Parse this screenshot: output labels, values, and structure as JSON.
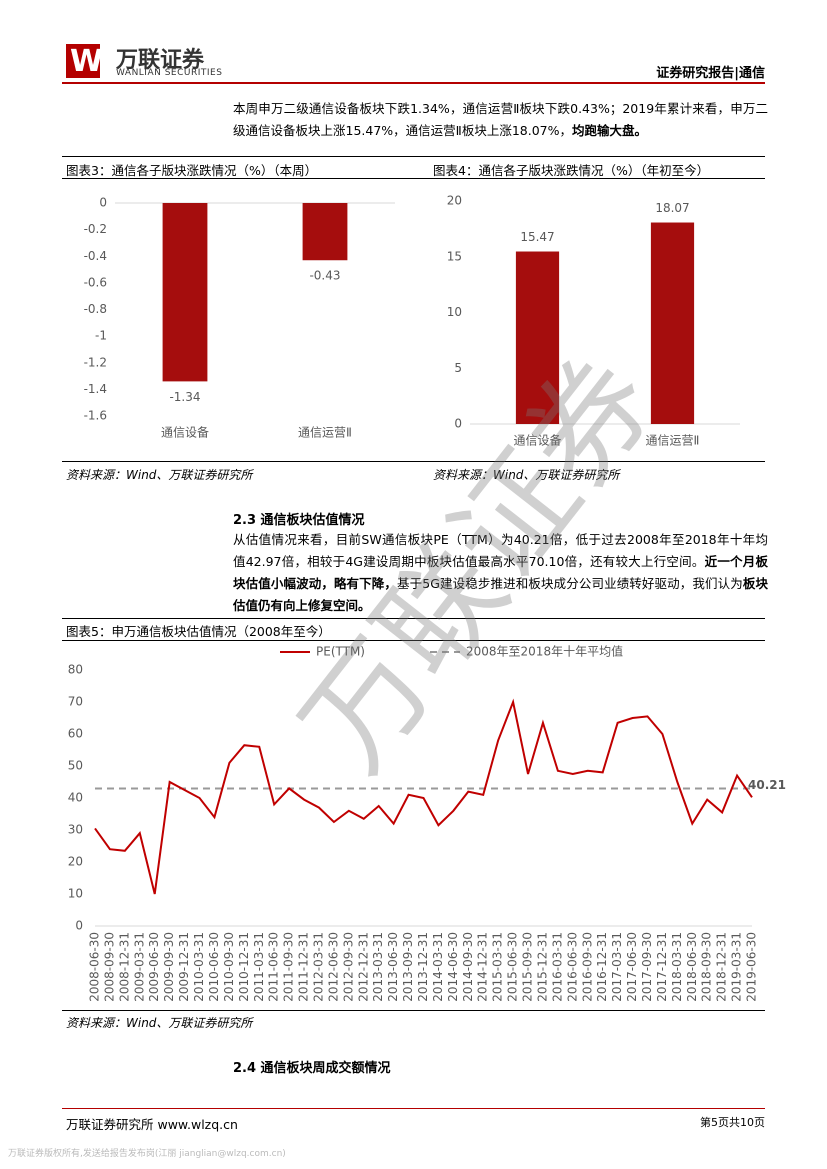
{
  "header": {
    "logo_cn": "万联证券",
    "logo_en": "WANLIAN SECURITIES",
    "report_type": "证券研究报告|通信"
  },
  "paragraph_1": [
    "本周申万二级通信设备板块下跌1.34%，通信运营Ⅱ板块下跌0.43%；2019年累计来看，申万二级通信设备板块上涨15.47%，通信运营Ⅱ板块上涨18.07%，",
    {
      "text": "均跑输大盘。",
      "bold": true
    }
  ],
  "section_2_3": "2.3 通信板块估值情况",
  "paragraph_2": [
    "从估值情况来看，目前SW通信板块PE（TTM）为40.21倍，低于过去2008年至2018年十年均值42.97倍，相较于4G建设周期中板块估值最高水平70.10倍，还有较大上行空间。",
    {
      "text": "近一个月板块估值小幅波动，略有下降，",
      "bold": true
    },
    "基于5G建设稳步推进和板块成分公司业绩转好驱动，我们认为",
    {
      "text": "板块估值仍有向上修复空间。",
      "bold": true
    }
  ],
  "section_2_4": "2.4 通信板块周成交额情况",
  "watermark": "万联证券",
  "footer": {
    "left": "万联证券研究所 www.wlzq.cn",
    "right": "第5页共10页",
    "copyright": "万联证券版权所有,发送给报告发布岗(江丽 jianglian@wlzq.com.cn)"
  },
  "chart_data": [
    {
      "type": "bar",
      "title": "图表3：通信各子版块涨跌情况（%）（本周）",
      "categories": [
        "通信设备",
        "通信运营Ⅱ"
      ],
      "values": [
        -1.34,
        -0.43
      ],
      "color": "#a50d0d",
      "ylim": [
        -1.6,
        0
      ],
      "yticks": [
        0,
        -0.2,
        -0.4,
        -0.6,
        -0.8,
        -1,
        -1.2,
        -1.4,
        -1.6
      ],
      "source": "资料来源：Wind、万联证券研究所"
    },
    {
      "type": "bar",
      "title": "图表4：通信各子版块涨跌情况（%）（年初至今）",
      "categories": [
        "通信设备",
        "通信运营Ⅱ"
      ],
      "values": [
        15.47,
        18.07
      ],
      "color": "#a50d0d",
      "ylim": [
        0,
        20
      ],
      "yticks": [
        0,
        5,
        10,
        15,
        20
      ],
      "source": "资料来源：Wind、万联证券研究所"
    },
    {
      "type": "line",
      "title": "图表5：申万通信板块估值情况（2008年至今）",
      "categories": [
        "2008-06-30",
        "2008-09-30",
        "2008-12-31",
        "2009-03-31",
        "2009-06-30",
        "2009-09-30",
        "2009-12-31",
        "2010-03-31",
        "2010-06-30",
        "2010-09-30",
        "2010-12-31",
        "2011-03-31",
        "2011-06-30",
        "2011-09-30",
        "2011-12-31",
        "2012-03-31",
        "2012-06-30",
        "2012-09-30",
        "2012-12-31",
        "2013-03-31",
        "2013-06-30",
        "2013-09-30",
        "2013-12-31",
        "2014-03-31",
        "2014-06-30",
        "2014-09-30",
        "2014-12-31",
        "2015-03-31",
        "2015-06-30",
        "2015-09-30",
        "2015-12-31",
        "2016-03-31",
        "2016-06-30",
        "2016-09-30",
        "2016-12-31",
        "2017-03-31",
        "2017-06-30",
        "2017-09-30",
        "2017-12-31",
        "2018-03-31",
        "2018-06-30",
        "2018-09-30",
        "2018-12-31",
        "2019-03-31",
        "2019-06-30"
      ],
      "series": [
        {
          "name": "PE(TTM)",
          "color": "#c00000",
          "values": [
            30.5,
            24,
            23.5,
            29,
            10,
            45,
            42.5,
            40,
            34,
            51,
            56.5,
            56,
            38,
            43,
            39.5,
            37,
            32.5,
            36,
            33.5,
            37.5,
            32,
            41,
            40,
            31.5,
            36,
            42,
            41,
            58,
            70,
            47.5,
            63.5,
            48.5,
            47.5,
            48.5,
            48,
            63.5,
            65,
            65.5,
            60,
            45,
            32,
            39.5,
            35.5,
            47,
            40.21
          ]
        }
      ],
      "reference_line": {
        "name": "2008年至2018年十年平均值",
        "value": 42.97,
        "color": "#999999"
      },
      "annotation": "40.21",
      "ylim": [
        0,
        80
      ],
      "yticks": [
        0,
        10,
        20,
        30,
        40,
        50,
        60,
        70,
        80
      ],
      "source": "资料来源：Wind、万联证券研究所"
    }
  ]
}
